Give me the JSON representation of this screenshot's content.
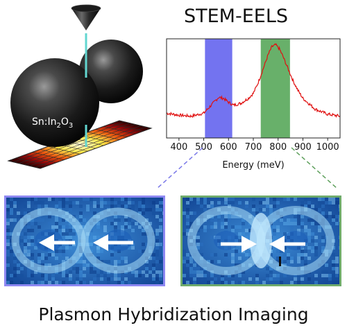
{
  "title": "STEM-EELS",
  "bottom_caption": "Plasmon Hybridization Imaging",
  "particle_label": {
    "prefix": "Sn:In",
    "sub1": "2",
    "mid": "O",
    "sub2": "3"
  },
  "colors": {
    "blue_band": "#7373f0",
    "green_band": "#68b06a",
    "spectrum_line": "#e01010",
    "beam": "#62d6d0",
    "left_frame": "#8e88f2",
    "right_frame": "#6fab6c",
    "arrow": "#ffffff"
  },
  "icons": {
    "probe": "electron-probe-cone-icon",
    "arrow": "arrow-icon"
  },
  "chart_data": {
    "type": "line",
    "title": "STEM-EELS",
    "xlabel": "Energy (meV)",
    "ylabel": "",
    "xlim": [
      350,
      1050
    ],
    "xticks": [
      400,
      500,
      600,
      700,
      800,
      900,
      1000
    ],
    "grid": false,
    "highlight_bands": [
      {
        "name": "",
        "range": [
          505,
          615
        ],
        "color": "#7373f0"
      },
      {
        "name": "",
        "range": [
          730,
          848
        ],
        "color": "#68b06a"
      }
    ],
    "series": [
      {
        "x": [
          350,
          400,
          450,
          500,
          530,
          560,
          580,
          600,
          620,
          650,
          680,
          700,
          720,
          740,
          760,
          775,
          790,
          805,
          820,
          840,
          860,
          880,
          900,
          950,
          1000,
          1050
        ],
        "values": [
          0.25,
          0.23,
          0.22,
          0.25,
          0.33,
          0.41,
          0.4,
          0.36,
          0.33,
          0.35,
          0.4,
          0.45,
          0.56,
          0.7,
          0.84,
          0.92,
          0.94,
          0.9,
          0.82,
          0.7,
          0.58,
          0.48,
          0.4,
          0.29,
          0.24,
          0.22
        ]
      }
    ],
    "ylim": [
      0,
      1
    ]
  },
  "maps": {
    "left": {
      "arrows": [
        "left",
        "left"
      ]
    },
    "right": {
      "arrows": [
        "right",
        "left"
      ]
    }
  }
}
